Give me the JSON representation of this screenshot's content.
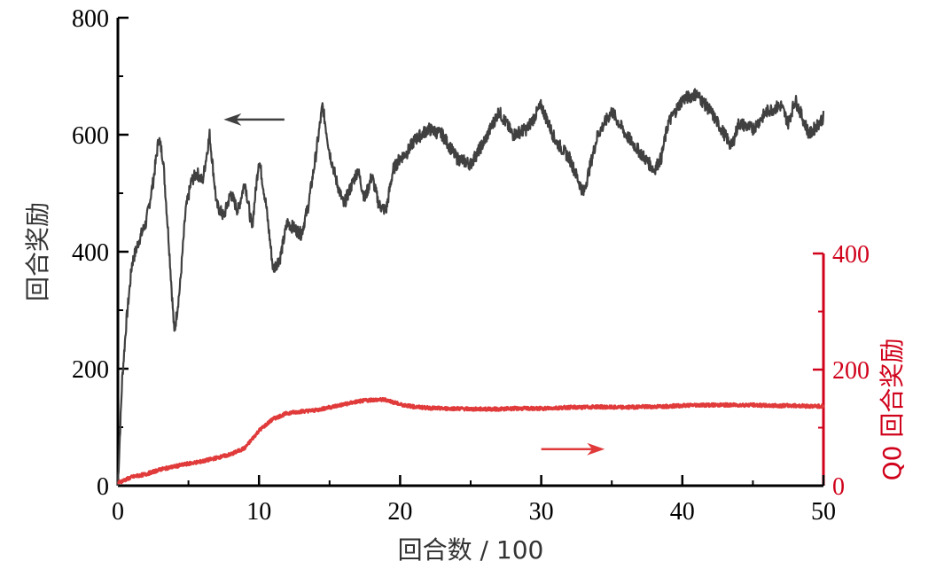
{
  "chart_data": {
    "type": "line",
    "title": "",
    "xlabel": "回合数 / 100",
    "ylabel_left": "回合奖励",
    "ylabel_right": "Q0 回合奖励",
    "xlim": [
      0,
      50
    ],
    "ylim_left": [
      0,
      800
    ],
    "ylim_right": [
      0,
      400
    ],
    "x_ticks": [
      0,
      10,
      20,
      30,
      40,
      50
    ],
    "y_left_ticks": [
      0,
      200,
      400,
      600,
      800
    ],
    "y_right_ticks": [
      0,
      200,
      400
    ],
    "grid": false,
    "legend": "none",
    "colors": {
      "episode_reward": "#404040",
      "q0_reward": "#e03a3a",
      "right_axis": "#d0021b"
    },
    "annotations": [
      {
        "type": "arrow",
        "direction": "left",
        "series": "episode_reward",
        "x": [
          7.5,
          11.8
        ],
        "y_left": 626
      },
      {
        "type": "arrow",
        "direction": "right",
        "series": "q0_reward",
        "x": [
          30,
          34.5
        ],
        "y_right": 63
      }
    ],
    "series": [
      {
        "axis": "left",
        "x": [
          0,
          0.3,
          0.6,
          1,
          1.5,
          2,
          2.5,
          2.9,
          3.2,
          3.6,
          4,
          4.4,
          4.8,
          5.2,
          5.6,
          6,
          6.5,
          7,
          7.5,
          8,
          8.5,
          9,
          9.5,
          10,
          10.5,
          11,
          11.5,
          12,
          12.5,
          13,
          13.5,
          14,
          14.5,
          15,
          15.5,
          16,
          16.5,
          17,
          17.5,
          18,
          18.5,
          19,
          19.5,
          20,
          20.5,
          21,
          22,
          23,
          24,
          25,
          26,
          27,
          28,
          29,
          30,
          30.5,
          31,
          32,
          33,
          33.5,
          34,
          35,
          36,
          37,
          38,
          38.5,
          39,
          40,
          41,
          42,
          43,
          43.5,
          44,
          45,
          46,
          47,
          47.5,
          48,
          49,
          50
        ],
        "y": [
          0,
          180,
          280,
          380,
          420,
          450,
          520,
          595,
          560,
          420,
          260,
          340,
          470,
          520,
          535,
          520,
          600,
          480,
          460,
          500,
          470,
          520,
          440,
          560,
          480,
          370,
          390,
          450,
          440,
          430,
          480,
          560,
          650,
          570,
          520,
          480,
          510,
          540,
          490,
          530,
          480,
          470,
          540,
          560,
          570,
          590,
          610,
          600,
          560,
          550,
          590,
          640,
          600,
          610,
          650,
          620,
          590,
          560,
          500,
          550,
          600,
          640,
          600,
          570,
          540,
          560,
          620,
          660,
          670,
          640,
          600,
          580,
          620,
          610,
          640,
          650,
          620,
          660,
          600,
          630
        ]
      },
      {
        "axis": "right",
        "x": [
          0,
          1,
          2,
          3,
          4,
          5,
          6,
          7,
          8,
          9,
          10,
          11,
          12,
          13,
          14,
          15,
          16,
          17,
          18,
          19,
          20,
          21,
          22,
          23,
          24,
          25,
          26,
          27,
          28,
          29,
          30,
          31,
          32,
          33,
          34,
          35,
          36,
          37,
          38,
          39,
          40,
          41,
          42,
          43,
          44,
          45,
          46,
          47,
          48,
          49,
          50
        ],
        "y": [
          5,
          15,
          20,
          28,
          33,
          38,
          42,
          48,
          54,
          65,
          95,
          115,
          125,
          128,
          130,
          135,
          140,
          145,
          148,
          148,
          140,
          136,
          134,
          133,
          133,
          132,
          132,
          132,
          133,
          133,
          133,
          134,
          135,
          135,
          136,
          135,
          135,
          136,
          136,
          137,
          138,
          139,
          139,
          139,
          139,
          139,
          138,
          138,
          138,
          137,
          137
        ]
      }
    ]
  }
}
